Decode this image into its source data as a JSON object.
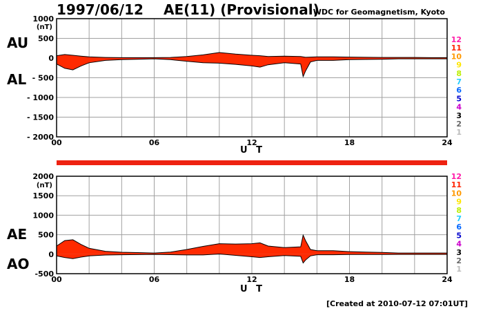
{
  "header": {
    "date": "1997/06/12",
    "title": "AE(11) (Provisional)",
    "org": "WDC for Geomagnetism, Kyoto"
  },
  "footer": {
    "created": "[Created at 2010-07-12 07:01UT]"
  },
  "side_labels": {
    "au": "AU",
    "al": "AL",
    "ae": "AE",
    "ao": "AO"
  },
  "colors": {
    "fill": "#ff2a00",
    "bar": "#ee2211",
    "grid": "#a0a0a0",
    "line": "#000000"
  },
  "legend": {
    "numbers": [
      "12",
      "11",
      "10",
      "9",
      "8",
      "7",
      "6",
      "5",
      "4",
      "3",
      "2",
      "1"
    ],
    "colors": [
      "#ff1aa8",
      "#ff2200",
      "#ff9900",
      "#ffe600",
      "#bbee00",
      "#22ccff",
      "#0066ff",
      "#0000cc",
      "#cc00cc",
      "#000000",
      "#666666",
      "#bbbbbb"
    ]
  },
  "chart_data": [
    {
      "type": "area",
      "panel": "AU/AL",
      "xlabel": "U T",
      "unit": "(nT)",
      "x_ticks": [
        "00",
        "06",
        "12",
        "18",
        "24"
      ],
      "y_ticks": [
        "1000",
        "500",
        "0",
        "- 500",
        "- 1000",
        "- 1500",
        "- 2000"
      ],
      "xlim": [
        0,
        24
      ],
      "ylim": [
        -2000,
        1000
      ],
      "grid": true,
      "series": [
        {
          "name": "AU",
          "x": [
            0,
            0.5,
            1,
            1.5,
            2,
            3,
            4,
            5,
            6,
            7,
            8,
            9,
            10,
            11,
            12,
            12.5,
            13,
            14,
            15,
            15.3,
            16,
            17,
            18,
            19,
            20,
            21,
            22,
            23,
            24
          ],
          "values": [
            60,
            90,
            70,
            50,
            30,
            15,
            10,
            10,
            10,
            15,
            40,
            80,
            140,
            100,
            70,
            60,
            40,
            50,
            40,
            20,
            30,
            30,
            25,
            20,
            15,
            15,
            15,
            10,
            10
          ]
        },
        {
          "name": "AL",
          "x": [
            0,
            0.5,
            1,
            1.5,
            2,
            3,
            4,
            5,
            6,
            7,
            8,
            9,
            10,
            11,
            12,
            12.5,
            13,
            14,
            15,
            15.15,
            15.3,
            15.6,
            16,
            17,
            18,
            19,
            20,
            21,
            22,
            23,
            24
          ],
          "values": [
            -150,
            -260,
            -300,
            -200,
            -120,
            -60,
            -40,
            -30,
            -20,
            -40,
            -80,
            -120,
            -130,
            -160,
            -200,
            -230,
            -170,
            -120,
            -150,
            -470,
            -330,
            -100,
            -60,
            -60,
            -40,
            -35,
            -30,
            -20,
            -20,
            -20,
            -20
          ]
        }
      ]
    },
    {
      "type": "area",
      "panel": "AE/AO",
      "xlabel": "U T",
      "unit": "(nT)",
      "x_ticks": [
        "00",
        "06",
        "12",
        "18",
        "24"
      ],
      "y_ticks": [
        "2000",
        "1500",
        "1000",
        "500",
        "0",
        "-500"
      ],
      "xlim": [
        0,
        24
      ],
      "ylim": [
        -500,
        2000
      ],
      "grid": true,
      "series": [
        {
          "name": "AE",
          "x": [
            0,
            0.5,
            1,
            1.5,
            2,
            3,
            4,
            5,
            6,
            7,
            8,
            9,
            10,
            11,
            12,
            12.5,
            13,
            14,
            15,
            15.15,
            15.3,
            15.6,
            16,
            17,
            18,
            19,
            20,
            21,
            22,
            23,
            24
          ],
          "values": [
            210,
            350,
            370,
            250,
            150,
            75,
            50,
            40,
            30,
            55,
            120,
            200,
            270,
            260,
            270,
            290,
            210,
            170,
            190,
            490,
            350,
            120,
            90,
            90,
            65,
            55,
            45,
            30,
            30,
            30,
            30
          ]
        },
        {
          "name": "AO",
          "x": [
            0,
            0.5,
            1,
            1.5,
            2,
            3,
            4,
            5,
            6,
            7,
            8,
            9,
            10,
            11,
            12,
            12.5,
            13,
            14,
            15,
            15.15,
            15.3,
            15.6,
            16,
            17,
            18,
            19,
            20,
            21,
            22,
            23,
            24
          ],
          "values": [
            -45,
            -85,
            -115,
            -75,
            -45,
            -22,
            -15,
            -10,
            -5,
            -12,
            -20,
            -20,
            5,
            -30,
            -65,
            -85,
            -65,
            -35,
            -55,
            -225,
            -150,
            -45,
            -15,
            -15,
            -8,
            -8,
            -8,
            -5,
            -5,
            -5,
            -5
          ]
        }
      ]
    }
  ]
}
